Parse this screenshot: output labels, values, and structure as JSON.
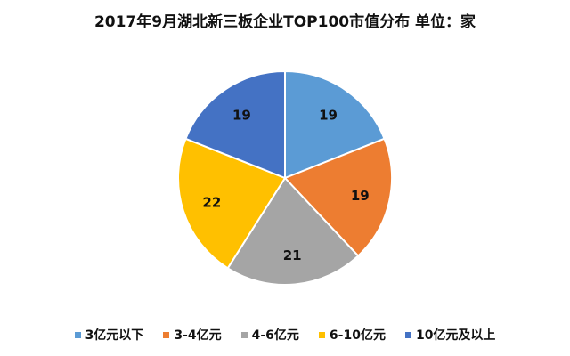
{
  "chart_data": {
    "type": "pie",
    "title": "2017年9月湖北新三板企业TOP100市值分布 单位：家",
    "categories": [
      "3亿元以下",
      "3-4亿元",
      "4-6亿元",
      "6-10亿元",
      "10亿元及以上"
    ],
    "values": [
      19,
      19,
      21,
      22,
      19
    ],
    "colors": [
      "#5b9bd5",
      "#ed7d31",
      "#a5a5a5",
      "#ffc000",
      "#4472c4"
    ],
    "legend_position": "bottom",
    "data_labels": true
  }
}
